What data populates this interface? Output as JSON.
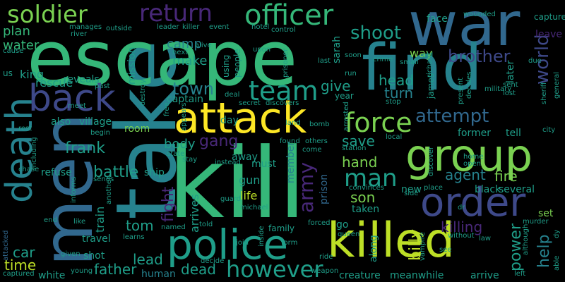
{
  "words": {
    "kill": "kill",
    "take": "take",
    "escape": "escape",
    "war": "war",
    "find": "find",
    "attack": "attack",
    "group": "group",
    "killed": "killed",
    "police": "police",
    "men": "men",
    "death": "death",
    "back": "back",
    "order": "order",
    "force": "force",
    "team": "team",
    "soldier": "soldier",
    "return": "return",
    "officer": "officer",
    "shoot": "shoot",
    "town": "town",
    "man": "man",
    "however": "however",
    "attempt": "attempt",
    "world": "world",
    "brother": "brother",
    "fight": "fight",
    "gang": "gang",
    "army": "army",
    "frank": "frank",
    "battle": "battle",
    "father": "father",
    "dead": "dead",
    "help": "help",
    "power": "power",
    "camp": "camp",
    "make": "make",
    "plan": "plan",
    "water": "water",
    "head": "head",
    "turn": "turn",
    "give": "give",
    "save": "save",
    "hand": "hand",
    "son": "son",
    "fire": "fire",
    "agent": "agent",
    "billy": "billy",
    "killing": "killing",
    "lead": "lead",
    "tom": "tom",
    "car": "car",
    "time": "time",
    "body": "body",
    "room": "room",
    "arrives": "arrives",
    "king": "king",
    "rescue": "rescue",
    "reveals": "reveals",
    "mission": "mission",
    "captain": "captain",
    "life": "life",
    "gun": "gun",
    "member": "member",
    "prison": "prison",
    "way": "way",
    "sarah": "sarah",
    "later": "later",
    "face": "face",
    "leave": "leave",
    "capture": "capture",
    "several": "several",
    "tell": "tell",
    "former": "former",
    "black": "black",
    "set": "set",
    "creature": "creature",
    "meanwhile": "meanwhile",
    "arrive": "arrive",
    "travel": "travel",
    "white": "white",
    "human": "human",
    "refuse": "refuse",
    "ship": "ship",
    "village": "village",
    "also": "also",
    "train": "train",
    "shot": "shot",
    "away": "away",
    "must": "must",
    "day": "day",
    "along": "along",
    "taken": "taken",
    "new": "new",
    "go": "go",
    "james": "james",
    "year": "year",
    "using": "using",
    "people": "people",
    "family": "family",
    "past": "past",
    "meet": "meet",
    "us": "us",
    "richard": "richard",
    "wounded": "wounded",
    "doctor": "doctor",
    "dr": "dr",
    "left": "left",
    "able": "able",
    "dy": "dy",
    "murder": "murder",
    "young": "young",
    "captured": "captured",
    "attacked": "attacked",
    "cause": "cause",
    "manages": "manages",
    "outside": "outside",
    "leader": "leader",
    "killer": "killer",
    "event": "event",
    "hotel": "hotel",
    "control": "control",
    "river": "river",
    "alive": "alive",
    "next": "next",
    "upon": "upon",
    "prisoner": "prisoner",
    "soon": "soon",
    "crime": "crime",
    "old": "old",
    "small": "small",
    "due": "due",
    "last": "last",
    "run": "run",
    "sent": "sent",
    "lost": "lost",
    "general": "general",
    "sheriff": "sheriff",
    "military": "military",
    "decides": "decides",
    "present": "present",
    "stop": "stop",
    "discovers": "discovers",
    "secret": "secret",
    "bomb": "bomb",
    "come": "come",
    "arrested": "arrested",
    "local": "local",
    "station": "station",
    "found": "found",
    "others": "others",
    "discover": "discover",
    "home": "home",
    "open": "open",
    "city": "city",
    "place": "place",
    "convinces": "convinces",
    "side": "side",
    "vampire": "vampire",
    "law": "law",
    "without": "without",
    "although": "although",
    "queen": "queen",
    "forced": "forced",
    "inside": "inside",
    "join": "join",
    "form": "form",
    "told": "told",
    "named": "named",
    "learns": "learns",
    "given": "given",
    "sends": "sends",
    "informs": "informs",
    "including": "including",
    "chase": "chase",
    "rest": "rest",
    "state": "state",
    "stay": "stay",
    "instead": "instead",
    "guard": "guard",
    "michael": "michael",
    "another": "another",
    "begin": "begin",
    "appears": "appears",
    "destroy": "destroy",
    "free": "free",
    "end": "end",
    "like": "like",
    "decide": "decide",
    "ride": "ride",
    "weapon": "weapon",
    "deal": "deal",
    "land": "land",
    "see": "see"
  }
}
